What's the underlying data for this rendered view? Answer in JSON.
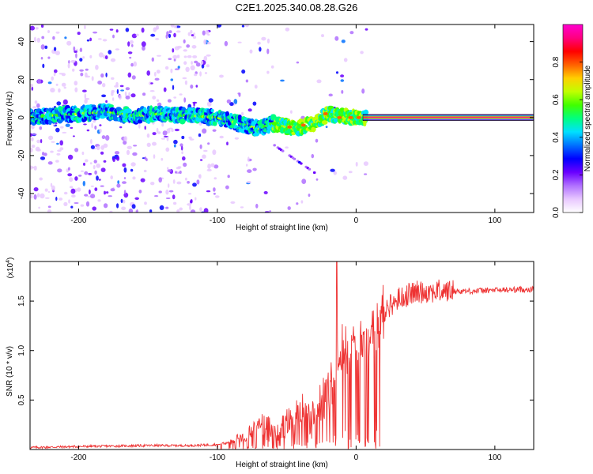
{
  "title": "C2E1.2025.340.08.28.G26",
  "chart_data": [
    {
      "type": "heatmap",
      "name": "spectrogram",
      "xlabel": "Height of straight line (km)",
      "ylabel": "Frequency (Hz)",
      "xlim": [
        -235,
        128
      ],
      "ylim": [
        -50,
        49
      ],
      "xticks": [
        -200,
        -100,
        0,
        100
      ],
      "xtick_labels": [
        "-200",
        "-100",
        "0",
        "100"
      ],
      "yticks": [
        -40,
        -20,
        0,
        20,
        40
      ],
      "ytick_labels": [
        "-40",
        "-20",
        "0",
        "20",
        "40"
      ],
      "colorbar": {
        "label": "Normalized spectral amplitude",
        "range": [
          0,
          1
        ],
        "ticks": [
          0.0,
          0.2,
          0.4,
          0.6,
          0.8
        ],
        "tick_labels": [
          "0.0",
          "0.2",
          "0.4",
          "0.6",
          "0.8"
        ],
        "colors": [
          "#ffffff",
          "#e8c8ff",
          "#b070ff",
          "#6a00ff",
          "#0000ff",
          "#0070ff",
          "#00e0ff",
          "#00ff80",
          "#40ff00",
          "#c0ff00",
          "#ffd000",
          "#ff6000",
          "#ff0000",
          "#ff0080",
          "#ff00d0"
        ]
      },
      "ridge_x": [
        -235,
        -220,
        -200,
        -180,
        -160,
        -140,
        -120,
        -100,
        -90,
        -80,
        -70,
        -60,
        -50,
        -40,
        -30,
        -20,
        -10,
        0,
        10,
        128
      ],
      "ridge_y": [
        0,
        1,
        2,
        3,
        1,
        2,
        1,
        0,
        -2,
        -4,
        -6,
        -3,
        -5,
        -5,
        -3,
        2,
        1,
        0,
        0,
        0
      ]
    },
    {
      "type": "line",
      "name": "snr",
      "xlabel": "Height of straight line (km)",
      "ylabel": "SNR (10 * v/v)",
      "scale_label": "(x10",
      "scale_exp": "4",
      "xlim": [
        -235,
        128
      ],
      "ylim": [
        0,
        1.9
      ],
      "xticks": [
        -200,
        -100,
        0,
        100
      ],
      "xtick_labels": [
        "-200",
        "-100",
        "0",
        "100"
      ],
      "yticks": [
        0.5,
        1.0,
        1.5
      ],
      "ytick_labels": [
        "0.5",
        "1.0",
        "1.5"
      ],
      "color": "#ee3333",
      "series_x": [
        -235,
        -200,
        -150,
        -120,
        -100,
        -90,
        -80,
        -70,
        -60,
        -50,
        -40,
        -30,
        -20,
        -15,
        -10,
        0,
        10,
        20,
        30,
        40,
        50,
        60,
        80,
        100,
        128
      ],
      "series_y": [
        0.02,
        0.03,
        0.04,
        0.04,
        0.05,
        0.08,
        0.15,
        0.25,
        0.18,
        0.22,
        0.35,
        0.4,
        0.6,
        0.9,
        1.0,
        1.05,
        1.2,
        1.4,
        1.52,
        1.58,
        1.6,
        1.6,
        1.6,
        1.61,
        1.62
      ]
    }
  ]
}
